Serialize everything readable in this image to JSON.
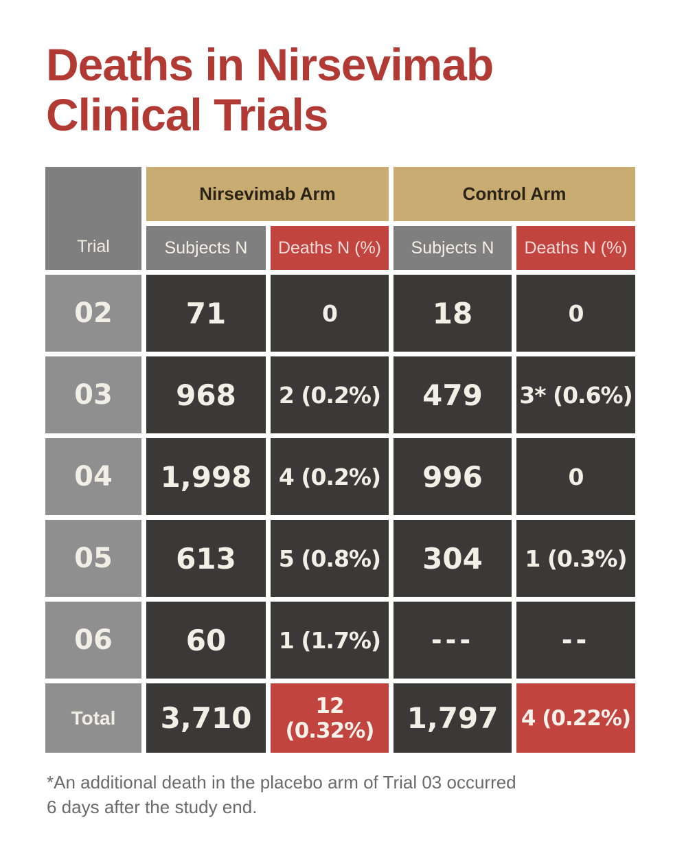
{
  "title": {
    "line1": "Deaths in Nirsevimab",
    "line2": "Clinical Trials"
  },
  "table": {
    "corner_label": "Trial",
    "group_headers": [
      {
        "label": "Nirsevimab Arm"
      },
      {
        "label": "Control Arm"
      }
    ],
    "sub_headers": [
      {
        "label": "Subjects N"
      },
      {
        "label": "Deaths N (%)"
      },
      {
        "label": "Subjects N"
      },
      {
        "label": "Deaths N (%)"
      }
    ],
    "rows": [
      {
        "trial": "02",
        "values": [
          "71",
          "0",
          "18",
          "0"
        ]
      },
      {
        "trial": "03",
        "values": [
          "968",
          "2 (0.2%)",
          "479",
          "3* (0.6%)"
        ]
      },
      {
        "trial": "04",
        "values": [
          "1,998",
          "4 (0.2%)",
          "996",
          "0"
        ]
      },
      {
        "trial": "05",
        "values": [
          "613",
          "5 (0.8%)",
          "304",
          "1 (0.3%)"
        ]
      },
      {
        "trial": "06",
        "values": [
          "60",
          "1 (1.7%)",
          "---",
          "--"
        ]
      }
    ],
    "total_row": {
      "trial": "Total",
      "values": [
        "3,710",
        "12 (0.32%)",
        "1,797",
        "4 (0.22%)"
      ]
    }
  },
  "footnote": {
    "line1": "*An additional death in the placebo arm of Trial 03 occurred",
    "line2": "6 days after the study end."
  },
  "colors": {
    "title_red": "#b23a35",
    "tan_header": "#c9ac72",
    "header_gray": "#7f7f7f",
    "row_gray": "#8f8f8f",
    "dark_cell": "#3a3937",
    "red_cell": "#c1443f",
    "cell_text_cream": "#f2efe7",
    "footnote_gray": "#6a6a6a"
  },
  "chart_data": {
    "type": "table",
    "title": "Deaths in Nirsevimab Clinical Trials",
    "columns": [
      "Trial",
      "Nirsevimab Arm Subjects N",
      "Nirsevimab Arm Deaths N (%)",
      "Control Arm Subjects N",
      "Control Arm Deaths N (%)"
    ],
    "rows": [
      [
        "02",
        "71",
        "0",
        "18",
        "0"
      ],
      [
        "03",
        "968",
        "2 (0.2%)",
        "479",
        "3* (0.6%)"
      ],
      [
        "04",
        "1,998",
        "4 (0.2%)",
        "996",
        "0"
      ],
      [
        "05",
        "613",
        "5 (0.8%)",
        "304",
        "1 (0.3%)"
      ],
      [
        "06",
        "60",
        "1 (1.7%)",
        "---",
        "--"
      ],
      [
        "Total",
        "3,710",
        "12 (0.32%)",
        "1,797",
        "4 (0.22%)"
      ]
    ],
    "footnote": "*An additional death in the placebo arm of Trial 03 occurred 6 days after the study end."
  }
}
